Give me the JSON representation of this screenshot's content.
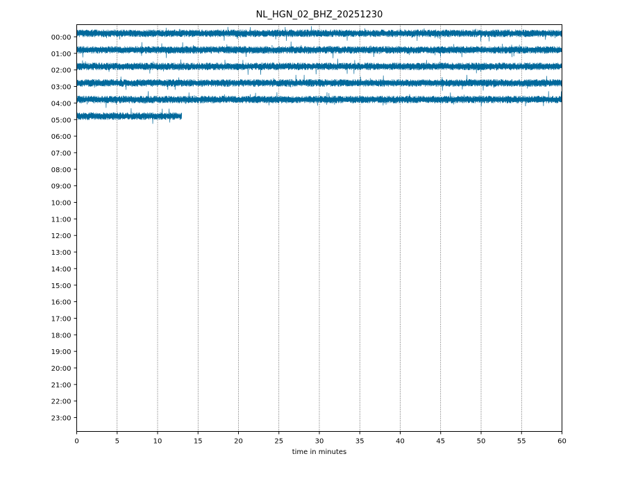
{
  "chart_data": {
    "type": "line",
    "title": "NL_HGN_02_BHZ_20251230",
    "xlabel": "time in minutes",
    "ylabel": "",
    "xlim": [
      0,
      60
    ],
    "x_ticks": [
      0,
      5,
      10,
      15,
      20,
      25,
      30,
      35,
      40,
      45,
      50,
      55,
      60
    ],
    "x_tick_labels": [
      "0",
      "5",
      "10",
      "15",
      "20",
      "25",
      "30",
      "35",
      "40",
      "45",
      "50",
      "55",
      "60"
    ],
    "y_tick_labels": [
      "00:00",
      "01:00",
      "02:00",
      "03:00",
      "04:00",
      "05:00",
      "06:00",
      "07:00",
      "08:00",
      "09:00",
      "10:00",
      "11:00",
      "12:00",
      "13:00",
      "14:00",
      "15:00",
      "16:00",
      "17:00",
      "18:00",
      "19:00",
      "20:00",
      "21:00",
      "22:00",
      "23:00"
    ],
    "grid": "vertical dotted at major x ticks",
    "trace_color": "#00689b",
    "series": [
      {
        "hour": "00:00",
        "start_minute": 0,
        "end_minute": 60
      },
      {
        "hour": "01:00",
        "start_minute": 0,
        "end_minute": 60
      },
      {
        "hour": "02:00",
        "start_minute": 0,
        "end_minute": 60
      },
      {
        "hour": "03:00",
        "start_minute": 0,
        "end_minute": 60
      },
      {
        "hour": "04:00",
        "start_minute": 0,
        "end_minute": 60
      },
      {
        "hour": "05:00",
        "start_minute": 0,
        "end_minute": 13
      }
    ]
  }
}
